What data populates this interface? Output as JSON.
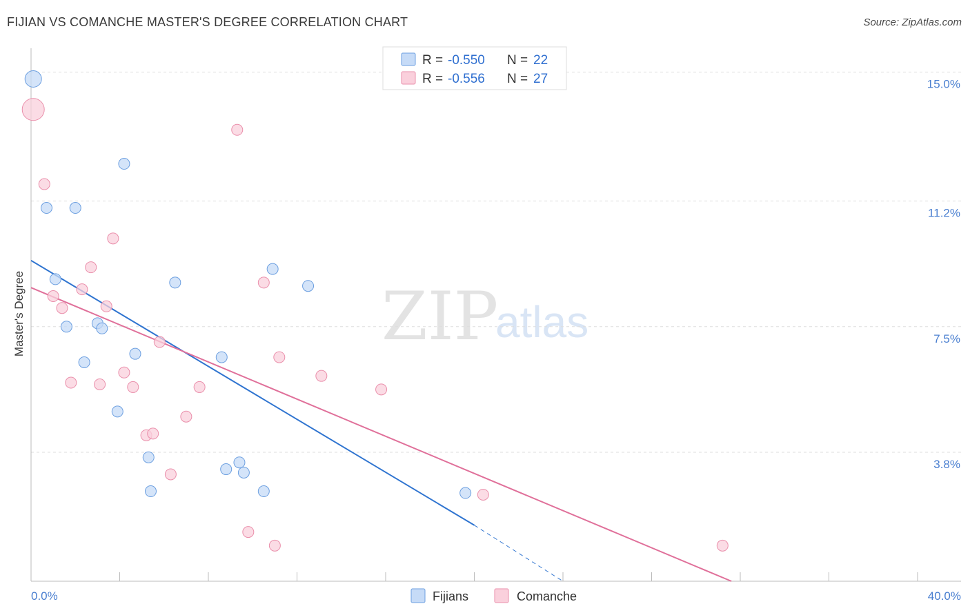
{
  "header": {
    "title": "FIJIAN VS COMANCHE MASTER'S DEGREE CORRELATION CHART",
    "source": "Source: ZipAtlas.com"
  },
  "watermark": {
    "zip": "ZIP",
    "atlas": "atlas"
  },
  "colors": {
    "fijians": "#6c9fe0",
    "fijians_fill": "#c6dbf7",
    "fijians_line": "#2f74d0",
    "comanche": "#ea8fab",
    "comanche_fill": "#fad0dc",
    "comanche_line": "#e0709a",
    "grid": "#dddddd",
    "tick_text": "#4a7fd0"
  },
  "chart_data": {
    "type": "scatter",
    "title": "FIJIAN VS COMANCHE MASTER'S DEGREE CORRELATION CHART",
    "xlabel": "",
    "ylabel": "Master's Degree",
    "xlim": [
      0,
      40
    ],
    "ylim": [
      0,
      15.5
    ],
    "x_tick_labels": [
      "0.0%",
      "40.0%"
    ],
    "y_ticks": [
      {
        "value": 3.8,
        "label": "3.8%"
      },
      {
        "value": 7.5,
        "label": "7.5%"
      },
      {
        "value": 11.2,
        "label": "11.2%"
      },
      {
        "value": 15.0,
        "label": "15.0%"
      }
    ],
    "legend": [
      {
        "r_label": "R = ",
        "r": "-0.550",
        "n_label": "N = ",
        "n": "22"
      },
      {
        "r_label": "R = ",
        "r": "-0.556",
        "n_label": "N = ",
        "n": "27"
      }
    ],
    "series": [
      {
        "name": "Fijians",
        "points": [
          {
            "x": 0.1,
            "y": 14.8,
            "size": 12
          },
          {
            "x": 4.2,
            "y": 12.3,
            "size": 8
          },
          {
            "x": 0.7,
            "y": 11.0,
            "size": 8
          },
          {
            "x": 2.0,
            "y": 11.0,
            "size": 8
          },
          {
            "x": 10.9,
            "y": 9.2,
            "size": 8
          },
          {
            "x": 1.1,
            "y": 8.9,
            "size": 8
          },
          {
            "x": 6.5,
            "y": 8.8,
            "size": 8
          },
          {
            "x": 12.5,
            "y": 8.7,
            "size": 8
          },
          {
            "x": 3.0,
            "y": 7.6,
            "size": 8
          },
          {
            "x": 1.6,
            "y": 7.5,
            "size": 8
          },
          {
            "x": 3.2,
            "y": 7.45,
            "size": 8
          },
          {
            "x": 4.7,
            "y": 6.7,
            "size": 8
          },
          {
            "x": 8.6,
            "y": 6.6,
            "size": 8
          },
          {
            "x": 2.4,
            "y": 6.45,
            "size": 8
          },
          {
            "x": 3.9,
            "y": 5.0,
            "size": 8
          },
          {
            "x": 5.3,
            "y": 3.65,
            "size": 8
          },
          {
            "x": 9.4,
            "y": 3.5,
            "size": 8
          },
          {
            "x": 8.8,
            "y": 3.3,
            "size": 8
          },
          {
            "x": 9.6,
            "y": 3.2,
            "size": 8
          },
          {
            "x": 5.4,
            "y": 2.65,
            "size": 8
          },
          {
            "x": 10.5,
            "y": 2.65,
            "size": 8
          },
          {
            "x": 19.6,
            "y": 2.6,
            "size": 8
          }
        ],
        "trend": {
          "x1": 0,
          "y1": 9.45,
          "x2": 20.0,
          "y2": 1.65
        },
        "trend_extension": {
          "x1": 20.0,
          "y1": 1.65,
          "x2": 24.0,
          "y2": 0.0
        }
      },
      {
        "name": "Comanche",
        "points": [
          {
            "x": 0.1,
            "y": 13.9,
            "size": 16
          },
          {
            "x": 9.3,
            "y": 13.3,
            "size": 8
          },
          {
            "x": 0.6,
            "y": 11.7,
            "size": 8
          },
          {
            "x": 3.7,
            "y": 10.1,
            "size": 8
          },
          {
            "x": 2.7,
            "y": 9.25,
            "size": 8
          },
          {
            "x": 10.5,
            "y": 8.8,
            "size": 8
          },
          {
            "x": 2.3,
            "y": 8.6,
            "size": 8
          },
          {
            "x": 1.0,
            "y": 8.4,
            "size": 8
          },
          {
            "x": 1.4,
            "y": 8.05,
            "size": 8
          },
          {
            "x": 3.4,
            "y": 8.1,
            "size": 8
          },
          {
            "x": 5.8,
            "y": 7.05,
            "size": 8
          },
          {
            "x": 11.2,
            "y": 6.6,
            "size": 8
          },
          {
            "x": 4.2,
            "y": 6.15,
            "size": 8
          },
          {
            "x": 13.1,
            "y": 6.05,
            "size": 8
          },
          {
            "x": 1.8,
            "y": 5.85,
            "size": 8
          },
          {
            "x": 3.1,
            "y": 5.8,
            "size": 8
          },
          {
            "x": 4.6,
            "y": 5.72,
            "size": 8
          },
          {
            "x": 7.6,
            "y": 5.72,
            "size": 8
          },
          {
            "x": 15.8,
            "y": 5.65,
            "size": 8
          },
          {
            "x": 7.0,
            "y": 4.85,
            "size": 8
          },
          {
            "x": 5.2,
            "y": 4.3,
            "size": 8
          },
          {
            "x": 5.5,
            "y": 4.35,
            "size": 8
          },
          {
            "x": 6.3,
            "y": 3.15,
            "size": 8
          },
          {
            "x": 20.4,
            "y": 2.55,
            "size": 8
          },
          {
            "x": 9.8,
            "y": 1.45,
            "size": 8
          },
          {
            "x": 11.0,
            "y": 1.05,
            "size": 8
          },
          {
            "x": 31.2,
            "y": 1.05,
            "size": 8
          }
        ],
        "trend": {
          "x1": 0,
          "y1": 8.65,
          "x2": 31.6,
          "y2": 0.0
        }
      }
    ]
  }
}
